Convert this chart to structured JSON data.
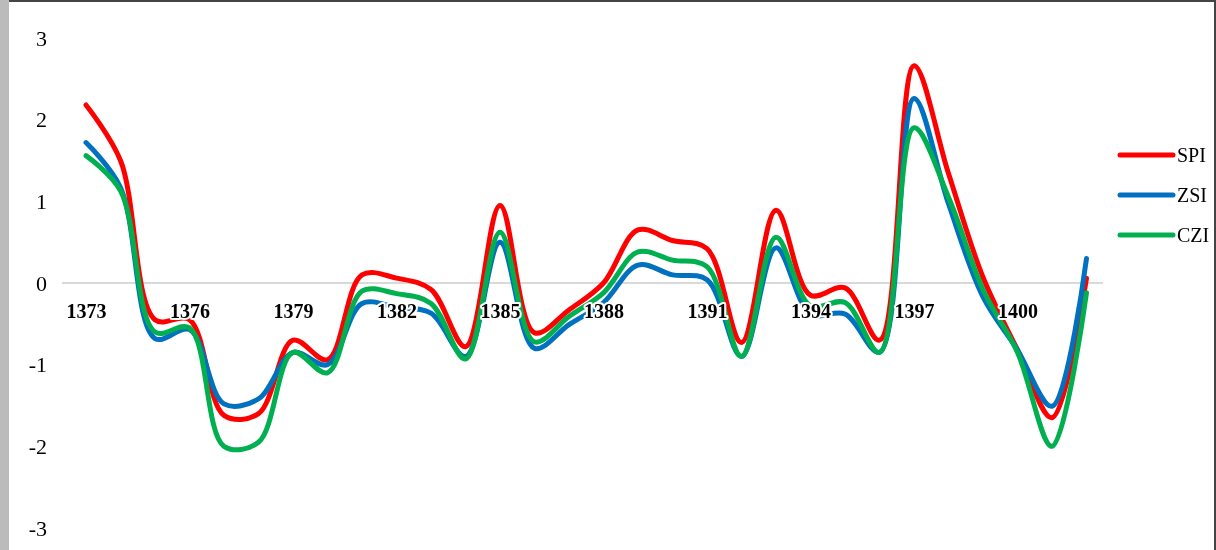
{
  "chart_data": {
    "type": "line",
    "categories": [
      "1373",
      null,
      null,
      "1376",
      null,
      null,
      "1379",
      null,
      null,
      "1382",
      null,
      null,
      "1385",
      null,
      null,
      "1388",
      null,
      null,
      "1391",
      null,
      null,
      "1394",
      null,
      null,
      "1397",
      null,
      null,
      "1400",
      null,
      null
    ],
    "series": [
      {
        "name": "SPI",
        "color": "#ff0000",
        "values": [
          2.18,
          1.5,
          -0.45,
          -0.45,
          -1.62,
          -1.6,
          -0.7,
          -0.94,
          0.1,
          0.06,
          -0.08,
          -0.78,
          0.95,
          -0.61,
          -0.33,
          0.0,
          0.65,
          0.52,
          0.42,
          -0.73,
          0.89,
          -0.15,
          -0.06,
          -0.7,
          2.66,
          1.34,
          0.07,
          -0.82,
          -1.65,
          0.06
        ]
      },
      {
        "name": "ZSI",
        "color": "#0070c0",
        "values": [
          1.72,
          1.17,
          -0.68,
          -0.57,
          -1.48,
          -1.42,
          -0.85,
          -1.0,
          -0.25,
          -0.3,
          -0.37,
          -0.9,
          0.5,
          -0.8,
          -0.51,
          -0.24,
          0.22,
          0.1,
          0.04,
          -0.9,
          0.43,
          -0.38,
          -0.38,
          -0.85,
          2.26,
          0.97,
          -0.17,
          -0.82,
          -1.51,
          0.3
        ]
      },
      {
        "name": "CZI",
        "color": "#00b050",
        "values": [
          1.56,
          1.13,
          -0.6,
          -0.55,
          -2.0,
          -1.95,
          -0.85,
          -1.1,
          -0.1,
          -0.13,
          -0.25,
          -0.93,
          0.62,
          -0.72,
          -0.41,
          -0.12,
          0.38,
          0.28,
          0.2,
          -0.9,
          0.56,
          -0.28,
          -0.24,
          -0.85,
          1.9,
          1.05,
          -0.08,
          -0.85,
          -2.0,
          -0.12
        ]
      }
    ],
    "ylim": [
      -3,
      3
    ],
    "yticks": [
      -3,
      -2,
      -1,
      0,
      1,
      2,
      3
    ],
    "grid": false,
    "legend": "right"
  }
}
